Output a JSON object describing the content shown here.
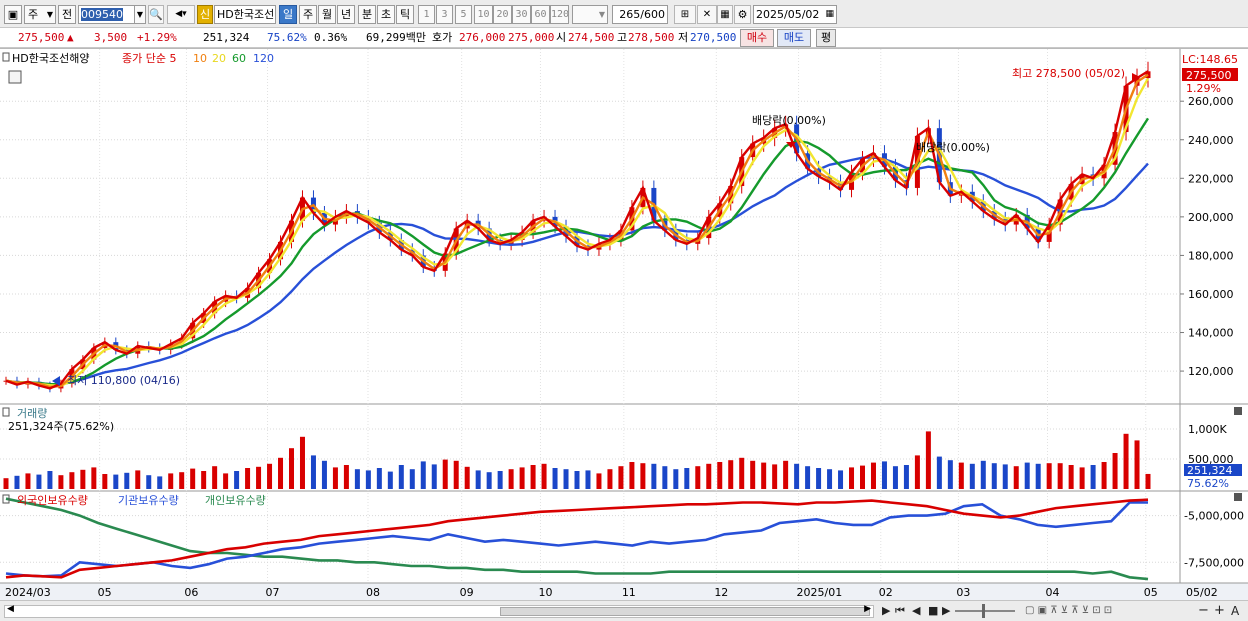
{
  "toolbar": {
    "period_dropdown": "주",
    "jeon_label": "전",
    "stock_code": "009540",
    "stock_name": "HD한국조선",
    "sin_label": "신",
    "periods": [
      "일",
      "주",
      "월",
      "년",
      "분",
      "초",
      "틱"
    ],
    "period_selected": "일",
    "intervals": [
      "1",
      "3",
      "5",
      "10",
      "20",
      "30",
      "60",
      "120"
    ],
    "count_value": "265",
    "count_total": "/600",
    "date_value": "2025/05/02"
  },
  "infobar": {
    "price": "275,500",
    "change": "3,500",
    "change_pct": "+1.29%",
    "volume": "251,324",
    "turnover_pct": "75.62%",
    "pct2": "0.36%",
    "amount": "69,299백만",
    "hoga_label": "호가",
    "ask": "276,000",
    "bid": "275,000",
    "si_label": "시",
    "open": "274,500",
    "go_label": "고",
    "high": "278,500",
    "jeo_label": "저",
    "low": "270,500",
    "buy_label": "매수",
    "sell_label": "매도",
    "pyeong_label": "평"
  },
  "price_panel": {
    "stock_label": "HD한국조선해양",
    "ma_label": "종가 단순 5",
    "ma_periods": [
      "10",
      "20",
      "60",
      "120"
    ],
    "lc_label": "LC:148.65",
    "current_price_tag": "275,500",
    "current_pct_tag": "1.29%",
    "max_label": "최고 278,500 (05/02)",
    "min_label": "최저 110,800 (04/16)",
    "dividend_labels": [
      "배당락(0.00%)",
      "배당락(0.00%)"
    ]
  },
  "volume_panel": {
    "title": "거래량",
    "value_label": "251,324주(75.62%)",
    "current_tag": "251,324",
    "pct_tag": "75.62%"
  },
  "holdings_panel": {
    "legend": [
      "외국인보유수량",
      "기관보유수량",
      "개인보유수량"
    ]
  },
  "colors": {
    "ma5": "#d80000",
    "ma10": "#f08010",
    "ma20": "#f2e630",
    "ma60": "#159a2c",
    "ma120": "#2850d8",
    "up": "#d80000",
    "down": "#1a46c8",
    "foreign": "#d80000",
    "institution": "#2850d8",
    "individual": "#2a8a50"
  },
  "chart_data": {
    "type": "line",
    "title": "HD한국조선해양",
    "x_axis_labels": [
      "2024/03",
      "05",
      "06",
      "07",
      "08",
      "09",
      "10",
      "11",
      "12",
      "2025/01",
      "02",
      "03",
      "04",
      "05"
    ],
    "right_axis_date": "05/02",
    "price_ticks": [
      "260,000",
      "240,000",
      "220,000",
      "200,000",
      "180,000",
      "160,000",
      "140,000",
      "120,000"
    ],
    "volume_ticks": [
      "1,000K",
      "500,000"
    ],
    "holding_ticks": [
      "-5,000,000",
      "-7,500,000"
    ],
    "ylim": [
      105000,
      285000
    ],
    "series": [
      {
        "name": "종가",
        "key": "close",
        "values": [
          115000,
          113000,
          114500,
          112500,
          111000,
          113500,
          121000,
          126000,
          132000,
          135000,
          131000,
          129000,
          133000,
          132000,
          131000,
          134000,
          137000,
          145000,
          150000,
          156000,
          159000,
          158000,
          163000,
          171000,
          178000,
          187000,
          198000,
          210000,
          202000,
          196000,
          200000,
          203000,
          200000,
          197000,
          192000,
          188000,
          183000,
          180000,
          174000,
          172000,
          181000,
          194000,
          198000,
          194000,
          188000,
          186000,
          188000,
          192000,
          198000,
          200000,
          195000,
          190000,
          185000,
          183000,
          186000,
          188000,
          193000,
          205000,
          215000,
          198000,
          193000,
          188000,
          186000,
          189000,
          200000,
          207000,
          216000,
          231000,
          238000,
          241000,
          246000,
          248000,
          233000,
          225000,
          221000,
          218000,
          214000,
          223000,
          230000,
          233000,
          226000,
          219000,
          215000,
          242000,
          246000,
          218000,
          211000,
          213000,
          208000,
          203000,
          199000,
          196000,
          201000,
          194000,
          187000,
          196000,
          209000,
          217000,
          222000,
          220000,
          227000,
          244000,
          268000,
          272000,
          275500
        ]
      },
      {
        "name": "5",
        "key": "ma5"
      },
      {
        "name": "10",
        "key": "ma10"
      },
      {
        "name": "20",
        "key": "ma20"
      },
      {
        "name": "60",
        "key": "ma60"
      },
      {
        "name": "120",
        "key": "ma120"
      }
    ],
    "volume_values": [
      180,
      220,
      260,
      240,
      300,
      230,
      280,
      320,
      360,
      250,
      240,
      270,
      310,
      230,
      210,
      260,
      280,
      340,
      300,
      380,
      260,
      300,
      350,
      370,
      420,
      520,
      680,
      870,
      560,
      470,
      360,
      400,
      330,
      310,
      350,
      290,
      400,
      330,
      460,
      410,
      490,
      470,
      370,
      310,
      280,
      300,
      330,
      360,
      400,
      420,
      350,
      330,
      300,
      310,
      260,
      330,
      380,
      450,
      430,
      420,
      380,
      330,
      350,
      380,
      420,
      450,
      480,
      520,
      470,
      440,
      410,
      470,
      420,
      380,
      350,
      330,
      310,
      360,
      390,
      440,
      460,
      380,
      400,
      560,
      960,
      540,
      480,
      440,
      420,
      470,
      430,
      410,
      380,
      440,
      420,
      430,
      430,
      400,
      360,
      400,
      450,
      600,
      920,
      810,
      251
    ],
    "volume_ylim": [
      0,
      1350
    ],
    "holdings": {
      "foreign": [
        -8.3,
        -8.2,
        -8.25,
        -8.3,
        -7.9,
        -7.8,
        -7.7,
        -7.6,
        -7.5,
        -7.4,
        -7.2,
        -7.0,
        -6.8,
        -6.7,
        -6.5,
        -6.4,
        -6.3,
        -6.1,
        -6.0,
        -5.9,
        -5.8,
        -5.7,
        -5.6,
        -5.5,
        -5.3,
        -5.2,
        -5.1,
        -5.0,
        -4.9,
        -4.8,
        -4.75,
        -4.7,
        -4.65,
        -4.6,
        -4.55,
        -4.5,
        -4.45,
        -4.4,
        -4.4,
        -4.35,
        -4.3,
        -4.3,
        -4.35,
        -4.4,
        -4.3,
        -4.3,
        -4.25,
        -4.2,
        -4.3,
        -4.4,
        -4.5,
        -4.7,
        -4.9,
        -5.0,
        -5.1,
        -5.0,
        -4.8,
        -4.6,
        -4.5,
        -4.4,
        -4.3,
        -4.2,
        -4.15
      ],
      "institution": [
        -8.1,
        -8.2,
        -8.25,
        -8.2,
        -7.5,
        -7.6,
        -7.7,
        -7.6,
        -7.5,
        -7.7,
        -7.8,
        -7.6,
        -7.3,
        -7.2,
        -7.0,
        -6.8,
        -6.7,
        -6.5,
        -6.4,
        -6.3,
        -6.2,
        -6.1,
        -6.2,
        -6.3,
        -6.0,
        -6.2,
        -6.4,
        -6.3,
        -6.4,
        -6.5,
        -6.6,
        -6.5,
        -6.4,
        -6.5,
        -6.6,
        -6.4,
        -6.5,
        -6.4,
        -6.3,
        -6.0,
        -5.9,
        -5.8,
        -5.4,
        -5.3,
        -5.2,
        -5.4,
        -5.5,
        -5.5,
        -5.1,
        -5.0,
        -5.0,
        -4.9,
        -4.5,
        -4.4,
        -5.0,
        -5.2,
        -5.5,
        -5.6,
        -5.5,
        -5.4,
        -5.3,
        -4.3,
        -4.3
      ],
      "individual": [
        -4.1,
        -4.3,
        -4.5,
        -4.7,
        -5.0,
        -5.4,
        -5.7,
        -6.0,
        -6.3,
        -6.6,
        -6.9,
        -7.0,
        -7.0,
        -7.1,
        -7.2,
        -7.2,
        -7.3,
        -7.4,
        -7.4,
        -7.5,
        -7.5,
        -7.6,
        -7.7,
        -7.7,
        -7.8,
        -7.8,
        -7.9,
        -7.9,
        -8.0,
        -8.0,
        -8.0,
        -8.0,
        -8.1,
        -8.1,
        -8.1,
        -8.1,
        -8.0,
        -8.0,
        -8.0,
        -8.0,
        -8.0,
        -8.0,
        -8.0,
        -8.0,
        -8.0,
        -8.0,
        -8.0,
        -8.0,
        -8.0,
        -8.0,
        -8.0,
        -8.0,
        -8.0,
        -8.0,
        -8.0,
        -8.0,
        -8.0,
        -8.0,
        -8.0,
        -8.1,
        -8.0,
        -8.3,
        -8.4
      ]
    }
  },
  "bottom": {
    "icons": [
      "play-icon",
      "first-icon",
      "prev-icon",
      "stop-icon",
      "next-icon"
    ],
    "zoom_minus": "−",
    "zoom_plus": "+",
    "text_tool": "A"
  }
}
